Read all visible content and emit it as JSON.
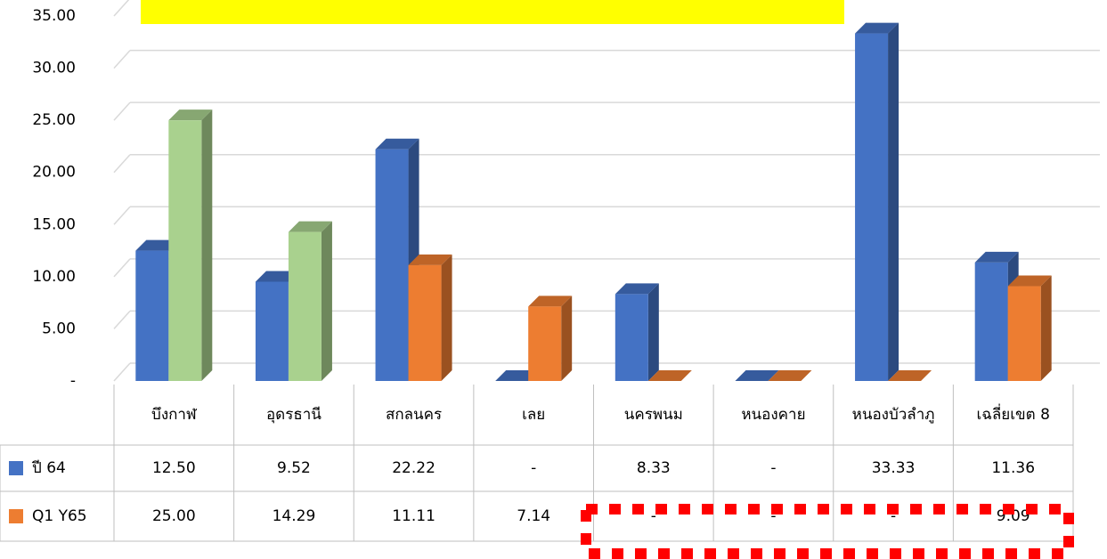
{
  "chart_data": {
    "type": "bar3d",
    "categories": [
      "บึงกาฬ",
      "อุดรธานี",
      "สกลนคร",
      "เลย",
      "นครพนม",
      "หนองคาย",
      "หนองบัวลำภู",
      "เฉลี่ยเขต 8"
    ],
    "series": [
      {
        "name": "ปี 64",
        "color": "#4472c4",
        "values": [
          12.5,
          9.52,
          22.22,
          0,
          8.33,
          0,
          33.33,
          11.36
        ],
        "value_labels": [
          "12.50",
          "9.52",
          "22.22",
          "-",
          "8.33",
          "-",
          "33.33",
          "11.36"
        ]
      },
      {
        "name": "Q1 Y65",
        "color": "#ed7d31",
        "colors": [
          "#a9d18e",
          "#a9d18e",
          "#ed7d31",
          "#ed7d31",
          "#ed7d31",
          "#ed7d31",
          "#ed7d31",
          "#ed7d31"
        ],
        "values": [
          25,
          14.29,
          11.11,
          7.14,
          0,
          0,
          0,
          9.09
        ],
        "value_labels": [
          "25.00",
          "14.29",
          "11.11",
          "7.14",
          "-",
          "-",
          "-",
          "9.09"
        ]
      }
    ],
    "ylim": [
      0,
      35
    ],
    "yticks": [
      {
        "value": 0,
        "label": "-"
      },
      {
        "value": 5,
        "label": "5.00"
      },
      {
        "value": 10,
        "label": "10.00"
      },
      {
        "value": 15,
        "label": "15.00"
      },
      {
        "value": 20,
        "label": "20.00"
      },
      {
        "value": 25,
        "label": "25.00"
      },
      {
        "value": 30,
        "label": "30.00"
      },
      {
        "value": 35,
        "label": "35.00"
      }
    ],
    "grid": true
  }
}
